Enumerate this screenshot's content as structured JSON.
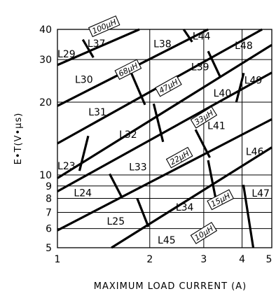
{
  "chart_data": {
    "type": "nomograph",
    "title": "",
    "xlabel": "MAXIMUM LOAD CURRENT (A)",
    "ylabel": "E•T(V•µs)",
    "x_scale": "log",
    "y_scale": "log",
    "xlim": [
      1,
      5
    ],
    "ylim": [
      5,
      40
    ],
    "grid": true,
    "x_ticks": [
      {
        "value": 1,
        "label": "1"
      },
      {
        "value": 2,
        "label": "2"
      },
      {
        "value": 3,
        "label": "3"
      },
      {
        "value": 4,
        "label": "4"
      },
      {
        "value": 5,
        "label": "5"
      }
    ],
    "y_ticks": [
      {
        "value": 5,
        "label": "5"
      },
      {
        "value": 6,
        "label": "6"
      },
      {
        "value": 7,
        "label": "7"
      },
      {
        "value": 8,
        "label": "8"
      },
      {
        "value": 9,
        "label": "9"
      },
      {
        "value": 10,
        "label": "10"
      },
      {
        "value": 20,
        "label": "20"
      },
      {
        "value": 30,
        "label": "30"
      },
      {
        "value": 40,
        "label": "40"
      }
    ],
    "inductance_boundaries": [
      {
        "label": "100µH",
        "points": [
          [
            1,
            28.5
          ],
          [
            1.85,
            40
          ]
        ],
        "label_at": [
          1.42,
          41.2
        ]
      },
      {
        "label": "68µH",
        "points": [
          [
            1,
            19.3
          ],
          [
            3.1,
            40
          ]
        ],
        "label_at": [
          1.7,
          27.3
        ]
      },
      {
        "label": "47µH",
        "points": [
          [
            1,
            13.5
          ],
          [
            4.65,
            40
          ]
        ],
        "label_at": [
          2.3,
          23.3
        ]
      },
      {
        "label": "33µH",
        "points": [
          [
            1,
            9.7
          ],
          [
            5,
            34.5
          ]
        ],
        "label_at": [
          3.0,
          17.3
        ]
      },
      {
        "label": "22µH",
        "points": [
          [
            1,
            8.55
          ],
          [
            5,
            26.5
          ]
        ],
        "label_at": [
          2.5,
          11.8
        ]
      },
      {
        "label": "15µH",
        "points": [
          [
            1,
            5.9
          ],
          [
            5,
            17.0
          ]
        ],
        "label_at": [
          3.4,
          7.9
        ]
      },
      {
        "label": "10µH",
        "points": [
          [
            1.5,
            5.0
          ],
          [
            5,
            13.0
          ]
        ],
        "label_at": [
          3.0,
          5.75
        ]
      }
    ],
    "separators": [
      {
        "points": [
          [
            1.31,
            30.6
          ],
          [
            1.21,
            36.3
          ]
        ]
      },
      {
        "points": [
          [
            1.93,
            19.5
          ],
          [
            1.7,
            28.3
          ]
        ]
      },
      {
        "points": [
          [
            2.21,
            13.7
          ],
          [
            2.06,
            19.7
          ]
        ]
      },
      {
        "points": [
          [
            2.58,
            40
          ],
          [
            2.75,
            35.5
          ]
        ]
      },
      {
        "points": [
          [
            3.4,
            25.3
          ],
          [
            3.1,
            32.5
          ]
        ]
      },
      {
        "points": [
          [
            3.83,
            20.0
          ],
          [
            4.05,
            26.4
          ]
        ]
      },
      {
        "points": [
          [
            3.14,
            11.8
          ],
          [
            2.82,
            15.4
          ]
        ]
      },
      {
        "points": [
          [
            1.18,
            10.4
          ],
          [
            1.26,
            14.5
          ]
        ]
      },
      {
        "points": [
          [
            1.48,
            10.1
          ],
          [
            1.62,
            8.1
          ]
        ]
      },
      {
        "points": [
          [
            1.82,
            8.0
          ],
          [
            1.98,
            6.1
          ]
        ]
      },
      {
        "points": [
          [
            3.28,
            8.0
          ],
          [
            3.1,
            11.5
          ]
        ]
      },
      {
        "points": [
          [
            4.04,
            9.1
          ],
          [
            4.35,
            5.0
          ]
        ]
      }
    ],
    "regions": [
      {
        "label": "L29",
        "at": [
          1.07,
          31.7
        ]
      },
      {
        "label": "L37",
        "at": [
          1.34,
          35.0
        ]
      },
      {
        "label": "L38",
        "at": [
          2.2,
          34.9
        ]
      },
      {
        "label": "L44",
        "at": [
          2.95,
          37.6
        ]
      },
      {
        "label": "L48",
        "at": [
          4.05,
          34.3
        ]
      },
      {
        "label": "L30",
        "at": [
          1.22,
          24.8
        ]
      },
      {
        "label": "L39",
        "at": [
          2.92,
          28.0
        ]
      },
      {
        "label": "L49",
        "at": [
          4.35,
          24.7
        ]
      },
      {
        "label": "L40",
        "at": [
          3.45,
          21.8
        ]
      },
      {
        "label": "L31",
        "at": [
          1.35,
          18.2
        ]
      },
      {
        "label": "L32",
        "at": [
          1.7,
          14.7
        ]
      },
      {
        "label": "L41",
        "at": [
          3.3,
          16.0
        ]
      },
      {
        "label": "L46",
        "at": [
          4.4,
          12.5
        ]
      },
      {
        "label": "L23",
        "at": [
          1.07,
          10.9
        ]
      },
      {
        "label": "L33",
        "at": [
          1.83,
          10.8
        ]
      },
      {
        "label": "L24",
        "at": [
          1.21,
          8.45
        ]
      },
      {
        "label": "L34",
        "at": [
          2.6,
          7.35
        ]
      },
      {
        "label": "L47",
        "at": [
          4.6,
          8.4
        ]
      },
      {
        "label": "L25",
        "at": [
          1.55,
          6.45
        ]
      },
      {
        "label": "L45",
        "at": [
          2.27,
          5.38
        ]
      }
    ]
  }
}
